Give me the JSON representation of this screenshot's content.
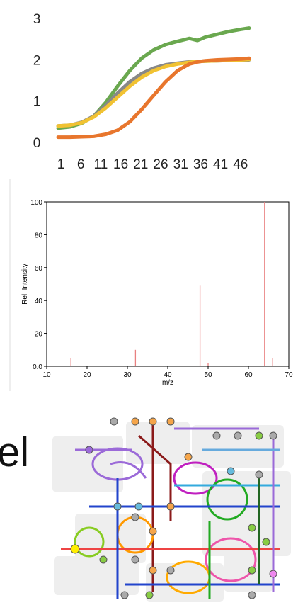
{
  "chart_data": [
    {
      "type": "line",
      "title": "",
      "xlabel": "",
      "ylabel": "",
      "x_tick_labels": [
        "1",
        "6",
        "11",
        "16",
        "21",
        "26",
        "31",
        "36",
        "41",
        "46"
      ],
      "y_tick_labels": [
        "0",
        "1",
        "2",
        "3"
      ],
      "xlim": [
        1,
        49
      ],
      "ylim": [
        0,
        3
      ],
      "grid": false,
      "legend": "none",
      "x": [
        1,
        4,
        7,
        10,
        13,
        16,
        19,
        22,
        25,
        28,
        31,
        34,
        36,
        38,
        41,
        44,
        47,
        49
      ],
      "series": [
        {
          "color": "#6aa84f",
          "values": [
            0.33,
            0.36,
            0.45,
            0.62,
            0.95,
            1.35,
            1.72,
            2.02,
            2.22,
            2.35,
            2.43,
            2.5,
            2.45,
            2.53,
            2.6,
            2.67,
            2.72,
            2.75
          ]
        },
        {
          "color": "#888888",
          "values": [
            0.38,
            0.4,
            0.47,
            0.62,
            0.88,
            1.18,
            1.45,
            1.65,
            1.78,
            1.86,
            1.9,
            1.93,
            1.94,
            1.95,
            1.96,
            1.97,
            1.98,
            1.98
          ]
        },
        {
          "color": "#f1c232",
          "values": [
            0.38,
            0.4,
            0.46,
            0.6,
            0.82,
            1.08,
            1.34,
            1.56,
            1.72,
            1.82,
            1.88,
            1.92,
            1.94,
            1.95,
            1.96,
            1.97,
            1.98,
            1.99
          ]
        },
        {
          "color": "#e8762d",
          "values": [
            0.11,
            0.11,
            0.12,
            0.13,
            0.18,
            0.28,
            0.48,
            0.78,
            1.12,
            1.45,
            1.72,
            1.88,
            1.93,
            1.96,
            1.98,
            1.99,
            2.0,
            2.02
          ]
        }
      ]
    },
    {
      "type": "bar",
      "title": "",
      "xlabel": "m/z",
      "ylabel": "Rel. Intensity",
      "xlim": [
        10,
        70
      ],
      "ylim": [
        0,
        100
      ],
      "x_ticks": [
        10,
        20,
        30,
        40,
        50,
        60,
        70
      ],
      "y_ticks": [
        0.0,
        20,
        40,
        60,
        80,
        100
      ],
      "y_tick_labels": [
        "0.0",
        "20",
        "40",
        "60",
        "80",
        "100"
      ],
      "x_tick_labels": [
        "10",
        "20",
        "30",
        "40",
        "50",
        "60",
        "70"
      ],
      "grid": false,
      "bar_color": "#e88080",
      "peaks": [
        {
          "mz": 16,
          "intensity": 5
        },
        {
          "mz": 32,
          "intensity": 10
        },
        {
          "mz": 48,
          "intensity": 49
        },
        {
          "mz": 50,
          "intensity": 2
        },
        {
          "mz": 64,
          "intensity": 100
        },
        {
          "mz": 66,
          "intensity": 5
        }
      ]
    }
  ],
  "partial_text": "el"
}
